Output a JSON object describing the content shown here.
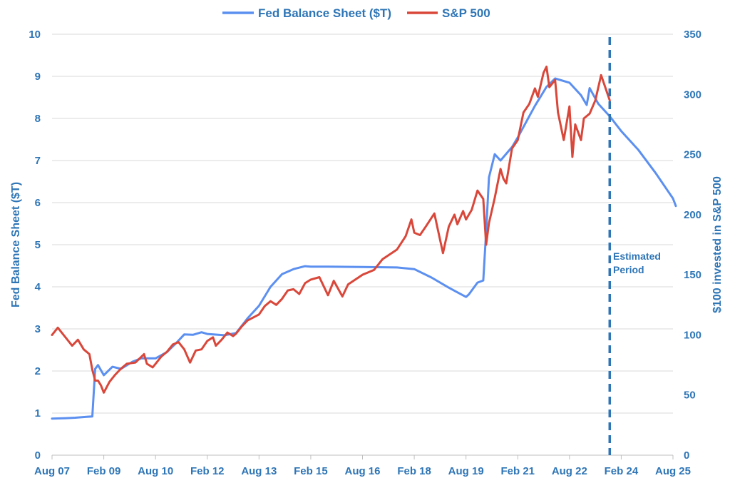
{
  "chart_data": {
    "type": "line",
    "title": "",
    "colors": {
      "fed": "#5b8ff0",
      "sp500": "#d9473a",
      "axis_text": "#2e75b6",
      "divider": "#2e75b6",
      "grid": "#d9d9d9"
    },
    "legend": {
      "placement": "top-center",
      "items": [
        "Fed Balance Sheet ($T)",
        "S&P 500"
      ]
    },
    "ylabel_left": "Fed Balance Sheet ($T)",
    "ylabel_right": "$100 invested in S&P 500",
    "ylim_left": [
      0,
      10
    ],
    "ylim_right": [
      0,
      350
    ],
    "y_ticks_left": [
      "0",
      "1",
      "2",
      "3",
      "4",
      "5",
      "6",
      "7",
      "8",
      "9",
      "10"
    ],
    "y_ticks_right": [
      "0",
      "50",
      "100",
      "150",
      "200",
      "250",
      "300",
      "350"
    ],
    "x_ticks": [
      "Aug 07",
      "Feb 09",
      "Aug 10",
      "Feb 12",
      "Aug 13",
      "Feb 15",
      "Aug 16",
      "Feb 18",
      "Aug 19",
      "Feb 21",
      "Aug 22",
      "Feb 24",
      "Aug 25"
    ],
    "xlim": [
      "Aug 07",
      "Aug 25"
    ],
    "grid": "horizontal",
    "divider": {
      "at": "Oct 23",
      "style": "dashed"
    },
    "annotation": {
      "line1": "Estimated",
      "line2": "Period"
    },
    "series": [
      {
        "name": "Fed Balance Sheet ($T)",
        "axis": "left",
        "points": [
          [
            "Aug 07",
            0.87
          ],
          [
            "Jan 08",
            0.88
          ],
          [
            "Apr 08",
            0.89
          ],
          [
            "Aug 08",
            0.91
          ],
          [
            "Oct 08",
            0.92
          ],
          [
            "Nov 08",
            2.05
          ],
          [
            "Dec 08",
            2.14
          ],
          [
            "Feb 09",
            1.9
          ],
          [
            "May 09",
            2.1
          ],
          [
            "Aug 09",
            2.05
          ],
          [
            "Dec 09",
            2.22
          ],
          [
            "Mar 10",
            2.3
          ],
          [
            "Aug 10",
            2.3
          ],
          [
            "Dec 10",
            2.45
          ],
          [
            "Mar 11",
            2.65
          ],
          [
            "Jun 11",
            2.87
          ],
          [
            "Sep 11",
            2.86
          ],
          [
            "Dec 11",
            2.92
          ],
          [
            "Feb 12",
            2.88
          ],
          [
            "Aug 12",
            2.85
          ],
          [
            "Dec 12",
            2.9
          ],
          [
            "Apr 13",
            3.25
          ],
          [
            "Aug 13",
            3.55
          ],
          [
            "Dec 13",
            4.0
          ],
          [
            "Apr 14",
            4.3
          ],
          [
            "Aug 14",
            4.42
          ],
          [
            "Dec 14",
            4.49
          ],
          [
            "Feb 15",
            4.48
          ],
          [
            "Aug 15",
            4.48
          ],
          [
            "Aug 16",
            4.47
          ],
          [
            "Aug 17",
            4.46
          ],
          [
            "Feb 18",
            4.42
          ],
          [
            "Aug 18",
            4.22
          ],
          [
            "Feb 19",
            3.98
          ],
          [
            "Aug 19",
            3.76
          ],
          [
            "Sep 19",
            3.82
          ],
          [
            "Dec 19",
            4.1
          ],
          [
            "Feb 20",
            4.15
          ],
          [
            "Mar 20",
            5.3
          ],
          [
            "Apr 20",
            6.6
          ],
          [
            "Jun 20",
            7.15
          ],
          [
            "Aug 20",
            7.0
          ],
          [
            "Dec 20",
            7.32
          ],
          [
            "Feb 21",
            7.55
          ],
          [
            "Aug 21",
            8.3
          ],
          [
            "Dec 21",
            8.75
          ],
          [
            "Mar 22",
            8.95
          ],
          [
            "Aug 22",
            8.85
          ],
          [
            "Dec 22",
            8.55
          ],
          [
            "Feb 23",
            8.32
          ],
          [
            "Mar 23",
            8.72
          ],
          [
            "Jun 23",
            8.35
          ],
          [
            "Oct 23",
            8.05
          ],
          [
            "Feb 24",
            7.7
          ],
          [
            "Aug 24",
            7.25
          ],
          [
            "Feb 25",
            6.7
          ],
          [
            "Jun 25",
            6.3
          ],
          [
            "Aug 25",
            6.1
          ],
          [
            "Sep 25",
            5.92
          ]
        ]
      },
      {
        "name": "S&P 500",
        "axis": "right",
        "points": [
          [
            "Aug 07",
            100
          ],
          [
            "Oct 07",
            106
          ],
          [
            "Jan 08",
            97
          ],
          [
            "Mar 08",
            91
          ],
          [
            "May 08",
            96
          ],
          [
            "Jul 08",
            88
          ],
          [
            "Sep 08",
            84
          ],
          [
            "Oct 08",
            71
          ],
          [
            "Nov 08",
            62
          ],
          [
            "Dec 08",
            62
          ],
          [
            "Jan 09",
            58
          ],
          [
            "Feb 09",
            52
          ],
          [
            "Apr 09",
            61
          ],
          [
            "Jun 09",
            67
          ],
          [
            "Aug 09",
            72
          ],
          [
            "Oct 09",
            76
          ],
          [
            "Jan 10",
            77
          ],
          [
            "Apr 10",
            84
          ],
          [
            "May 10",
            76
          ],
          [
            "Jul 10",
            73
          ],
          [
            "Aug 10",
            76
          ],
          [
            "Oct 10",
            82
          ],
          [
            "Dec 10",
            86
          ],
          [
            "Feb 11",
            92
          ],
          [
            "Apr 11",
            94
          ],
          [
            "Jun 11",
            88
          ],
          [
            "Aug 11",
            77
          ],
          [
            "Oct 11",
            87
          ],
          [
            "Dec 11",
            88
          ],
          [
            "Feb 12",
            95
          ],
          [
            "Apr 12",
            98
          ],
          [
            "May 12",
            91
          ],
          [
            "Jul 12",
            96
          ],
          [
            "Sep 12",
            102
          ],
          [
            "Nov 12",
            99
          ],
          [
            "Dec 12",
            101
          ],
          [
            "Feb 13",
            107
          ],
          [
            "Apr 13",
            112
          ],
          [
            "Aug 13",
            117
          ],
          [
            "Oct 13",
            124
          ],
          [
            "Dec 13",
            128
          ],
          [
            "Feb 14",
            125
          ],
          [
            "Apr 14",
            130
          ],
          [
            "Jun 14",
            137
          ],
          [
            "Aug 14",
            138
          ],
          [
            "Oct 14",
            134
          ],
          [
            "Dec 14",
            143
          ],
          [
            "Feb 15",
            146
          ],
          [
            "May 15",
            148
          ],
          [
            "Aug 15",
            133
          ],
          [
            "Oct 15",
            145
          ],
          [
            "Jan 16",
            132
          ],
          [
            "Mar 16",
            142
          ],
          [
            "Aug 16",
            150
          ],
          [
            "Dec 16",
            154
          ],
          [
            "Mar 17",
            163
          ],
          [
            "Aug 17",
            171
          ],
          [
            "Nov 17",
            182
          ],
          [
            "Jan 18",
            196
          ],
          [
            "Feb 18",
            185
          ],
          [
            "Apr 18",
            183
          ],
          [
            "Jun 18",
            190
          ],
          [
            "Sep 18",
            201
          ],
          [
            "Oct 18",
            190
          ],
          [
            "Dec 18",
            168
          ],
          [
            "Feb 19",
            190
          ],
          [
            "Apr 19",
            200
          ],
          [
            "May 19",
            192
          ],
          [
            "Jul 19",
            203
          ],
          [
            "Aug 19",
            196
          ],
          [
            "Oct 19",
            204
          ],
          [
            "Dec 19",
            220
          ],
          [
            "Feb 20",
            213
          ],
          [
            "Mar 20",
            175
          ],
          [
            "Apr 20",
            193
          ],
          [
            "Jun 20",
            214
          ],
          [
            "Aug 20",
            238
          ],
          [
            "Sep 20",
            230
          ],
          [
            "Oct 20",
            226
          ],
          [
            "Dec 20",
            255
          ],
          [
            "Feb 21",
            262
          ],
          [
            "Apr 21",
            285
          ],
          [
            "Jun 21",
            292
          ],
          [
            "Aug 21",
            305
          ],
          [
            "Sep 21",
            298
          ],
          [
            "Nov 21",
            318
          ],
          [
            "Dec 21",
            323
          ],
          [
            "Jan 22",
            306
          ],
          [
            "Mar 22",
            312
          ],
          [
            "Apr 22",
            285
          ],
          [
            "Jun 22",
            262
          ],
          [
            "Aug 22",
            290
          ],
          [
            "Sep 22",
            248
          ],
          [
            "Oct 22",
            275
          ],
          [
            "Dec 22",
            262
          ],
          [
            "Jan 23",
            280
          ],
          [
            "Mar 23",
            284
          ],
          [
            "May 23",
            295
          ],
          [
            "Jul 23",
            316
          ],
          [
            "Oct 23",
            295
          ]
        ]
      }
    ]
  }
}
